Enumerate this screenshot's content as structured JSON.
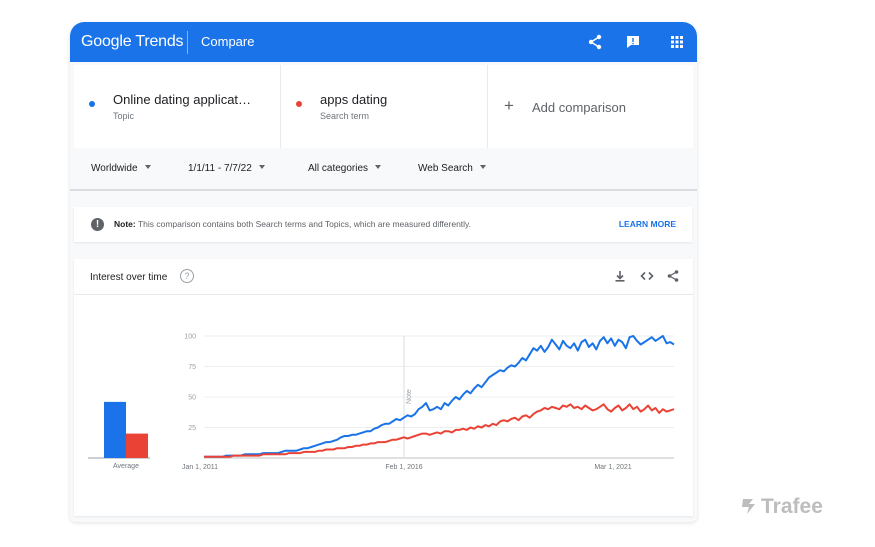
{
  "header": {
    "logo": "Google Trends",
    "title": "Compare"
  },
  "terms": [
    {
      "label": "Online dating applicat…",
      "type": "Topic",
      "color": "#1a73e8"
    },
    {
      "label": "apps dating",
      "type": "Search term",
      "color": "#ea4335"
    }
  ],
  "add_comparison": "Add comparison",
  "filters": {
    "region": "Worldwide",
    "date_range": "1/1/11 - 7/7/22",
    "category": "All categories",
    "search_type": "Web Search"
  },
  "note": {
    "prefix": "Note:",
    "text": "This comparison contains both Search terms and Topics, which are measured differently.",
    "link": "LEARN MORE"
  },
  "interest": {
    "title": "Interest over time",
    "help": "?",
    "average_label": "Average",
    "annotation": "Note"
  },
  "chart_data": {
    "type": "line",
    "x_labels": [
      "Jan 1, 2011",
      "Feb 1, 2016",
      "Mar 1, 2021"
    ],
    "y_ticks": [
      25,
      50,
      75,
      100
    ],
    "ylim": [
      0,
      100
    ],
    "series": [
      {
        "color": "#1a73e8",
        "values": [
          1,
          1,
          1,
          1,
          1,
          1,
          2,
          2,
          2,
          2,
          2,
          3,
          3,
          3,
          3,
          3,
          4,
          4,
          4,
          4,
          4,
          5,
          6,
          6,
          6,
          6,
          7,
          8,
          8,
          9,
          10,
          11,
          12,
          13,
          13,
          14,
          15,
          17,
          18,
          18,
          19,
          19,
          20,
          21,
          22,
          22,
          24,
          25,
          27,
          28,
          28,
          30,
          32,
          31,
          33,
          35,
          34,
          36,
          40,
          42,
          45,
          39,
          40,
          42,
          40,
          45,
          43,
          47,
          50,
          48,
          52,
          55,
          53,
          57,
          60,
          58,
          62,
          66,
          68,
          70,
          72,
          71,
          74,
          76,
          75,
          78,
          82,
          80,
          85,
          90,
          88,
          92,
          87,
          91,
          97,
          93,
          89,
          96,
          92,
          90,
          94,
          88,
          95,
          97,
          91,
          94,
          89,
          96,
          99,
          94,
          98,
          92,
          97,
          95,
          90,
          99,
          100,
          96,
          93,
          95,
          97,
          99,
          96,
          98,
          100,
          94,
          95,
          93
        ],
        "average": 46
      },
      {
        "color": "#ea4335",
        "values": [
          1,
          1,
          1,
          1,
          1,
          1,
          1,
          1,
          2,
          2,
          2,
          2,
          2,
          2,
          2,
          2,
          3,
          3,
          3,
          3,
          3,
          3,
          3,
          4,
          4,
          4,
          4,
          5,
          5,
          5,
          5,
          6,
          6,
          7,
          7,
          7,
          8,
          8,
          8,
          9,
          9,
          10,
          10,
          11,
          11,
          12,
          12,
          13,
          13,
          13,
          14,
          15,
          15,
          16,
          17,
          16,
          17,
          18,
          19,
          20,
          20,
          19,
          20,
          21,
          20,
          22,
          22,
          21,
          23,
          23,
          24,
          23,
          25,
          24,
          26,
          25,
          27,
          26,
          28,
          27,
          30,
          31,
          30,
          32,
          33,
          31,
          34,
          35,
          33,
          36,
          38,
          39,
          41,
          40,
          42,
          41,
          40,
          43,
          42,
          44,
          41,
          42,
          40,
          43,
          41,
          39,
          40,
          42,
          44,
          40,
          38,
          41,
          43,
          39,
          41,
          44,
          40,
          42,
          38,
          40,
          43,
          39,
          41,
          37,
          40,
          38,
          39,
          40
        ],
        "average": 20
      }
    ]
  }
}
